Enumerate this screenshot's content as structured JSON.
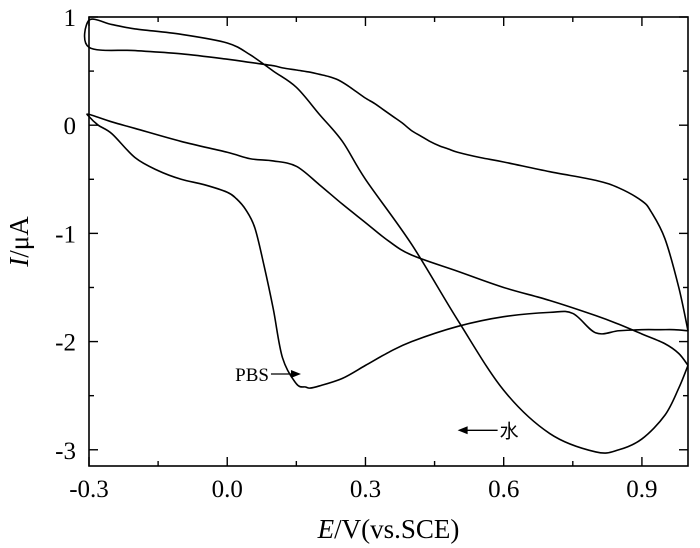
{
  "chart_data": {
    "type": "line",
    "xlabel": {
      "italic": "E",
      "rest": "/V(vs.SCE)"
    },
    "ylabel": {
      "italic": "I",
      "rest": "/μA"
    },
    "xlim": [
      -0.3,
      1.0
    ],
    "ylim": [
      -3.15,
      1.0
    ],
    "x_ticks": [
      {
        "value": -0.3,
        "label": "-0.3"
      },
      {
        "value": 0.0,
        "label": "0.0"
      },
      {
        "value": 0.3,
        "label": "0.3"
      },
      {
        "value": 0.6,
        "label": "0.6"
      },
      {
        "value": 0.9,
        "label": "0.9"
      }
    ],
    "y_ticks": [
      {
        "value": 1,
        "label": "1"
      },
      {
        "value": 0,
        "label": "0"
      },
      {
        "value": -1,
        "label": "-1"
      },
      {
        "value": -2,
        "label": "-2"
      },
      {
        "value": -3,
        "label": "-3"
      }
    ],
    "series": [
      {
        "name": "PBS",
        "x": [
          1.0,
          0.97,
          0.94,
          0.9,
          0.85,
          0.8,
          0.75,
          0.7,
          0.6,
          0.5,
          0.4,
          0.35,
          0.3,
          0.25,
          0.2,
          0.18,
          0.17,
          0.15,
          0.12,
          0.1,
          0.08,
          0.06,
          0.04,
          0.02,
          0.0,
          -0.05,
          -0.1,
          -0.15,
          -0.2,
          -0.25,
          -0.28,
          -0.3,
          -0.3,
          -0.25,
          -0.2,
          -0.1,
          0.0,
          0.05,
          0.1,
          0.15,
          0.2,
          0.25,
          0.3,
          0.35,
          0.4,
          0.5,
          0.6,
          0.7,
          0.8,
          0.85,
          0.9,
          0.95,
          0.98,
          1.0
        ],
        "y": [
          -1.9,
          -1.89,
          -1.89,
          -1.89,
          -1.9,
          -1.92,
          -1.74,
          -1.73,
          -1.77,
          -1.86,
          -2.0,
          -2.1,
          -2.22,
          -2.34,
          -2.41,
          -2.43,
          -2.42,
          -2.39,
          -2.15,
          -1.7,
          -1.3,
          -0.95,
          -0.78,
          -0.68,
          -0.62,
          -0.55,
          -0.5,
          -0.42,
          -0.3,
          -0.08,
          0.0,
          0.08,
          0.1,
          0.03,
          -0.03,
          -0.15,
          -0.25,
          -0.31,
          -0.33,
          -0.38,
          -0.55,
          -0.73,
          -0.9,
          -1.07,
          -1.2,
          -1.35,
          -1.5,
          -1.62,
          -1.76,
          -1.84,
          -1.93,
          -2.02,
          -2.11,
          -2.22
        ]
      },
      {
        "name": "水",
        "x": [
          1.0,
          0.98,
          0.95,
          0.92,
          0.9,
          0.85,
          0.8,
          0.7,
          0.6,
          0.55,
          0.5,
          0.48,
          0.46,
          0.44,
          0.42,
          0.4,
          0.38,
          0.36,
          0.34,
          0.32,
          0.3,
          0.28,
          0.26,
          0.24,
          0.22,
          0.2,
          0.18,
          0.15,
          0.12,
          0.1,
          0.05,
          0.0,
          -0.1,
          -0.2,
          -0.3,
          -0.3,
          -0.25,
          -0.2,
          -0.1,
          0.0,
          0.05,
          0.1,
          0.15,
          0.2,
          0.25,
          0.3,
          0.4,
          0.5,
          0.6,
          0.7,
          0.8,
          0.85,
          0.9,
          0.95,
          0.98,
          1.0
        ],
        "y": [
          -1.9,
          -1.5,
          -1.05,
          -0.8,
          -0.7,
          -0.58,
          -0.51,
          -0.43,
          -0.34,
          -0.3,
          -0.25,
          -0.22,
          -0.19,
          -0.15,
          -0.1,
          -0.05,
          0.02,
          0.08,
          0.14,
          0.2,
          0.25,
          0.31,
          0.37,
          0.42,
          0.45,
          0.47,
          0.49,
          0.51,
          0.53,
          0.55,
          0.58,
          0.61,
          0.66,
          0.69,
          0.72,
          0.97,
          0.93,
          0.89,
          0.84,
          0.76,
          0.65,
          0.5,
          0.35,
          0.1,
          -0.15,
          -0.5,
          -1.1,
          -1.8,
          -2.45,
          -2.85,
          -3.02,
          -3.0,
          -2.9,
          -2.68,
          -2.43,
          -2.22
        ]
      }
    ],
    "annotations": [
      {
        "text": "PBS",
        "x": 0.16,
        "y": -2.3,
        "arrow_dir": "right"
      },
      {
        "text": "水",
        "x": 0.5,
        "y": -2.82,
        "arrow_dir": "left"
      }
    ]
  }
}
